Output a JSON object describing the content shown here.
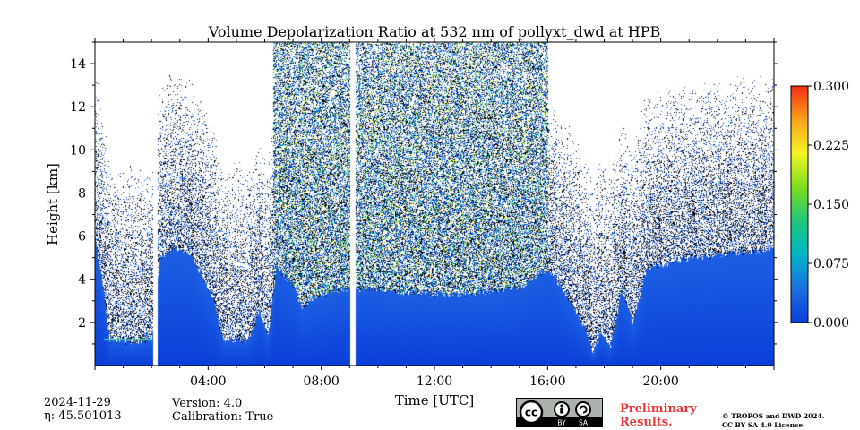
{
  "chart_data": {
    "type": "heatmap",
    "title": "Volume Depolarization Ratio at 532 nm of pollyxt_dwd at HPB",
    "xlabel": "Time [UTC]",
    "ylabel": "Height [km]",
    "xlim": [
      "00:00",
      "24:00"
    ],
    "ylim": [
      0,
      15
    ],
    "x_ticks": [
      "04:00",
      "08:00",
      "12:00",
      "16:00",
      "20:00"
    ],
    "y_ticks": [
      "2",
      "4",
      "6",
      "8",
      "10",
      "12",
      "14"
    ],
    "colorbar": {
      "min": 0.0,
      "max": 0.3,
      "ticks": [
        "0.000",
        "0.075",
        "0.150",
        "0.225",
        "0.300"
      ],
      "colormap": [
        "#0a3fd9",
        "#1c6fe0",
        "#00b6c9",
        "#1fc77a",
        "#7ddc1f",
        "#f5f520",
        "#f9a31a",
        "#f22d14"
      ]
    },
    "profile": [
      {
        "t": 0.0,
        "top": 5.8
      },
      {
        "t": 0.3,
        "top": 3.5
      },
      {
        "t": 0.5,
        "top": 1.2
      },
      {
        "t": 1.2,
        "top": 1.1
      },
      {
        "t": 2.0,
        "top": 1.2
      },
      {
        "t": 2.3,
        "top": 5.0
      },
      {
        "t": 2.8,
        "top": 5.5
      },
      {
        "t": 3.4,
        "top": 5.2
      },
      {
        "t": 4.2,
        "top": 3.0
      },
      {
        "t": 4.5,
        "top": 1.2
      },
      {
        "t": 5.4,
        "top": 1.2
      },
      {
        "t": 5.8,
        "top": 2.5
      },
      {
        "t": 6.1,
        "top": 1.3
      },
      {
        "t": 6.4,
        "top": 4.5
      },
      {
        "t": 7.0,
        "top": 3.8
      },
      {
        "t": 7.3,
        "top": 2.6
      },
      {
        "t": 7.6,
        "top": 3.0
      },
      {
        "t": 8.5,
        "top": 3.5
      },
      {
        "t": 9.0,
        "top": 3.6
      },
      {
        "t": 11.0,
        "top": 3.4
      },
      {
        "t": 13.0,
        "top": 3.3
      },
      {
        "t": 15.0,
        "top": 3.6
      },
      {
        "t": 16.0,
        "top": 4.5
      },
      {
        "t": 16.8,
        "top": 3.0
      },
      {
        "t": 17.3,
        "top": 1.8
      },
      {
        "t": 17.6,
        "top": 0.6
      },
      {
        "t": 17.9,
        "top": 1.6
      },
      {
        "t": 18.2,
        "top": 0.8
      },
      {
        "t": 18.6,
        "top": 3.5
      },
      {
        "t": 19.0,
        "top": 2.0
      },
      {
        "t": 19.5,
        "top": 4.5
      },
      {
        "t": 21.0,
        "top": 5.0
      },
      {
        "t": 24.0,
        "top": 5.4
      }
    ],
    "gaps": [
      {
        "start": 2.05,
        "end": 2.2
      },
      {
        "start": 9.0,
        "end": 9.2
      }
    ]
  },
  "footer": {
    "date": "2024-11-29",
    "eta": "η: 45.501013",
    "version": "Version: 4.0",
    "calibration": "Calibration: True",
    "preliminary_line1": "Preliminary",
    "preliminary_line2": "Results.",
    "copyright_line1": "© TROPOS and DWD 2024.",
    "copyright_line2": "CC BY SA 4.0 License.",
    "license_badge": {
      "cc": "cc",
      "by": "BY",
      "sa": "SA",
      "icon": "cc-by-sa-icon"
    }
  }
}
